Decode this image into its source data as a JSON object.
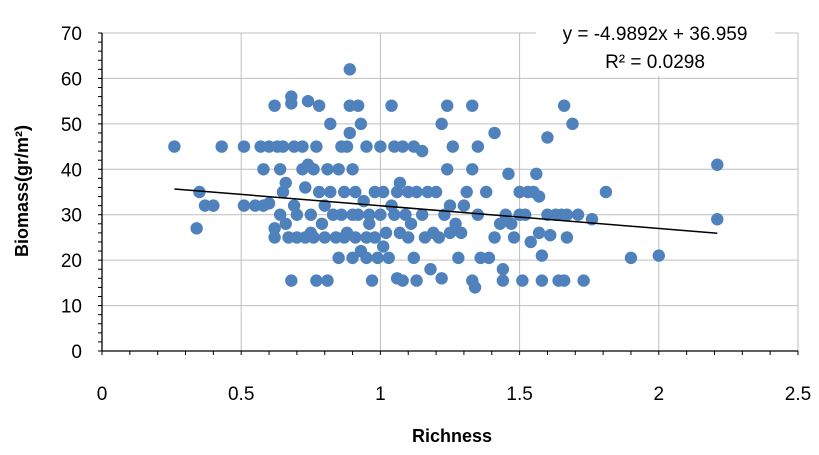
{
  "chart_data": {
    "type": "scatter",
    "title": "",
    "xlabel": "Richness",
    "ylabel": "Biomass(gr/m²)",
    "xlim": [
      0,
      2.5
    ],
    "ylim": [
      0,
      70
    ],
    "x_ticks": [
      "0",
      "0.5",
      "1",
      "1.5",
      "2",
      "2.5"
    ],
    "y_ticks": [
      "0",
      "10",
      "20",
      "30",
      "40",
      "50",
      "60",
      "70"
    ],
    "grid": "major gridlines on both axes",
    "marker_color": "#4F81BD",
    "trendline": {
      "type": "linear",
      "slope": -4.9892,
      "intercept": 36.959,
      "x_range": [
        0.26,
        2.21
      ],
      "color": "#000000",
      "equation_label": "y = -4.9892x + 36.959",
      "r2_label": "R² = 0.0298"
    },
    "series": [
      {
        "points": [
          [
            0.26,
            45
          ],
          [
            0.34,
            27
          ],
          [
            0.35,
            35
          ],
          [
            0.37,
            32
          ],
          [
            0.4,
            32
          ],
          [
            0.43,
            45
          ],
          [
            0.51,
            45
          ],
          [
            0.51,
            32
          ],
          [
            0.55,
            32
          ],
          [
            0.57,
            45
          ],
          [
            0.58,
            32
          ],
          [
            0.58,
            40
          ],
          [
            0.6,
            45
          ],
          [
            0.6,
            32.5
          ],
          [
            0.62,
            54
          ],
          [
            0.62,
            27
          ],
          [
            0.62,
            25
          ],
          [
            0.63,
            45
          ],
          [
            0.64,
            40
          ],
          [
            0.64,
            30
          ],
          [
            0.65,
            45
          ],
          [
            0.65,
            35
          ],
          [
            0.66,
            37
          ],
          [
            0.66,
            28
          ],
          [
            0.67,
            25
          ],
          [
            0.68,
            56
          ],
          [
            0.68,
            54.5
          ],
          [
            0.68,
            15.5
          ],
          [
            0.69,
            45
          ],
          [
            0.69,
            32
          ],
          [
            0.7,
            30
          ],
          [
            0.7,
            25
          ],
          [
            0.72,
            45
          ],
          [
            0.72,
            40
          ],
          [
            0.73,
            36
          ],
          [
            0.73,
            25
          ],
          [
            0.74,
            55
          ],
          [
            0.74,
            41
          ],
          [
            0.75,
            30
          ],
          [
            0.75,
            26
          ],
          [
            0.76,
            40
          ],
          [
            0.76,
            25
          ],
          [
            0.77,
            45
          ],
          [
            0.77,
            15.5
          ],
          [
            0.78,
            54
          ],
          [
            0.78,
            35
          ],
          [
            0.79,
            28
          ],
          [
            0.8,
            32
          ],
          [
            0.8,
            25
          ],
          [
            0.81,
            40
          ],
          [
            0.81,
            15.5
          ],
          [
            0.82,
            50
          ],
          [
            0.82,
            35
          ],
          [
            0.83,
            30
          ],
          [
            0.84,
            25
          ],
          [
            0.85,
            40
          ],
          [
            0.85,
            20.5
          ],
          [
            0.86,
            45
          ],
          [
            0.86,
            30
          ],
          [
            0.87,
            35
          ],
          [
            0.87,
            25
          ],
          [
            0.88,
            45
          ],
          [
            0.88,
            26
          ],
          [
            0.89,
            62
          ],
          [
            0.89,
            54
          ],
          [
            0.89,
            48
          ],
          [
            0.9,
            40
          ],
          [
            0.9,
            30
          ],
          [
            0.9,
            20.5
          ],
          [
            0.91,
            35
          ],
          [
            0.91,
            25
          ],
          [
            0.92,
            54
          ],
          [
            0.92,
            30
          ],
          [
            0.93,
            50
          ],
          [
            0.93,
            22
          ],
          [
            0.94,
            33
          ],
          [
            0.95,
            45
          ],
          [
            0.95,
            25
          ],
          [
            0.95,
            20.5
          ],
          [
            0.96,
            30
          ],
          [
            0.96,
            28
          ],
          [
            0.97,
            15.5
          ],
          [
            0.98,
            35
          ],
          [
            0.98,
            25
          ],
          [
            0.99,
            20.5
          ],
          [
            1.0,
            45
          ],
          [
            1.0,
            30
          ],
          [
            1.01,
            35
          ],
          [
            1.01,
            23
          ],
          [
            1.02,
            26
          ],
          [
            1.03,
            20.5
          ],
          [
            1.04,
            54
          ],
          [
            1.04,
            32
          ],
          [
            1.05,
            45
          ],
          [
            1.05,
            30
          ],
          [
            1.06,
            35
          ],
          [
            1.06,
            16
          ],
          [
            1.07,
            37
          ],
          [
            1.07,
            26
          ],
          [
            1.08,
            45
          ],
          [
            1.08,
            15.5
          ],
          [
            1.09,
            30
          ],
          [
            1.1,
            35
          ],
          [
            1.1,
            25
          ],
          [
            1.11,
            28
          ],
          [
            1.12,
            45
          ],
          [
            1.12,
            20.5
          ],
          [
            1.13,
            35
          ],
          [
            1.13,
            15.5
          ],
          [
            1.15,
            44
          ],
          [
            1.15,
            30
          ],
          [
            1.16,
            25
          ],
          [
            1.17,
            35
          ],
          [
            1.18,
            18
          ],
          [
            1.19,
            26
          ],
          [
            1.2,
            35
          ],
          [
            1.21,
            25
          ],
          [
            1.22,
            50
          ],
          [
            1.22,
            16
          ],
          [
            1.23,
            30
          ],
          [
            1.24,
            54
          ],
          [
            1.24,
            40
          ],
          [
            1.25,
            32
          ],
          [
            1.25,
            26
          ],
          [
            1.26,
            45
          ],
          [
            1.27,
            28
          ],
          [
            1.28,
            20.5
          ],
          [
            1.29,
            26
          ],
          [
            1.3,
            32
          ],
          [
            1.31,
            35
          ],
          [
            1.33,
            54
          ],
          [
            1.33,
            40
          ],
          [
            1.33,
            15.5
          ],
          [
            1.34,
            14
          ],
          [
            1.35,
            45
          ],
          [
            1.35,
            30
          ],
          [
            1.36,
            20.5
          ],
          [
            1.38,
            35
          ],
          [
            1.39,
            20.5
          ],
          [
            1.41,
            48
          ],
          [
            1.41,
            25
          ],
          [
            1.43,
            28
          ],
          [
            1.44,
            18
          ],
          [
            1.44,
            15.5
          ],
          [
            1.45,
            30
          ],
          [
            1.46,
            39
          ],
          [
            1.47,
            28
          ],
          [
            1.48,
            25
          ],
          [
            1.5,
            30
          ],
          [
            1.5,
            35
          ],
          [
            1.51,
            15.5
          ],
          [
            1.52,
            30
          ],
          [
            1.53,
            35
          ],
          [
            1.54,
            24
          ],
          [
            1.55,
            35
          ],
          [
            1.56,
            39
          ],
          [
            1.57,
            34
          ],
          [
            1.57,
            26
          ],
          [
            1.58,
            21
          ],
          [
            1.58,
            15.5
          ],
          [
            1.6,
            47
          ],
          [
            1.6,
            30
          ],
          [
            1.61,
            25.5
          ],
          [
            1.63,
            30
          ],
          [
            1.64,
            15.5
          ],
          [
            1.65,
            30
          ],
          [
            1.66,
            54
          ],
          [
            1.66,
            15.5
          ],
          [
            1.67,
            30
          ],
          [
            1.67,
            25
          ],
          [
            1.69,
            50
          ],
          [
            1.71,
            30
          ],
          [
            1.73,
            15.5
          ],
          [
            1.76,
            29
          ],
          [
            1.81,
            35
          ],
          [
            1.9,
            20.5
          ],
          [
            2.0,
            21
          ],
          [
            2.21,
            41
          ],
          [
            2.21,
            29
          ]
        ]
      }
    ]
  }
}
